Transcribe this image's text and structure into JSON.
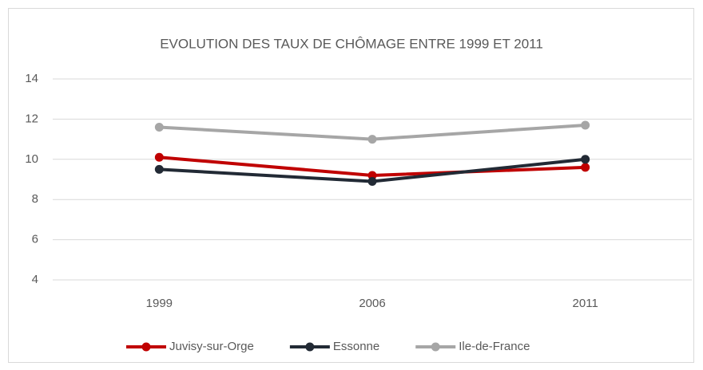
{
  "chart_data": {
    "type": "line",
    "title": "EVOLUTION DES TAUX DE CHÔMAGE ENTRE 1999 ET 2011",
    "categories": [
      "1999",
      "2006",
      "2011"
    ],
    "series": [
      {
        "name": "Juvisy-sur-Orge",
        "color": "#c00000",
        "values": [
          10.1,
          9.2,
          9.6
        ]
      },
      {
        "name": "Essonne",
        "color": "#222a35",
        "values": [
          9.5,
          8.9,
          10.0
        ]
      },
      {
        "name": "Ile-de-France",
        "color": "#a6a6a6",
        "values": [
          11.6,
          11.0,
          11.7
        ]
      }
    ],
    "ylim": [
      4,
      14
    ],
    "yticks": [
      4,
      6,
      8,
      10,
      12,
      14
    ],
    "grid": true,
    "legend": "bottom"
  }
}
